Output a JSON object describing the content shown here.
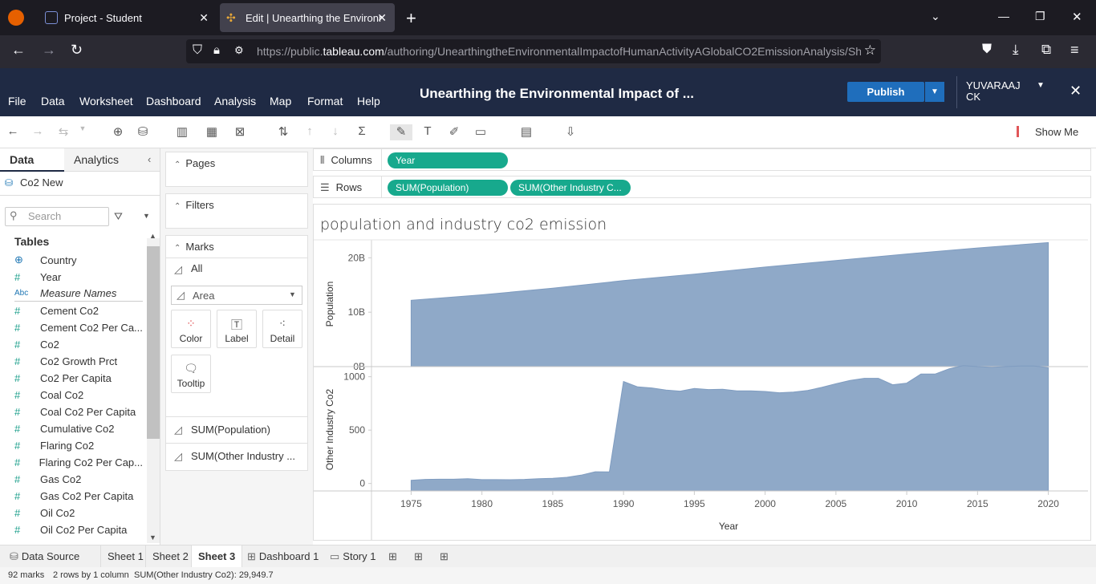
{
  "browser": {
    "tabs": [
      {
        "title": "Project - Student"
      },
      {
        "title": "Edit | Unearthing the Environme"
      }
    ],
    "url_prefix": "https://public.",
    "url_domain": "tableau.com",
    "url_rest": "/authoring/UnearthingtheEnvironmentalImpactofHumanActivityAGlobalCO2EmissionAnalysis/Sh"
  },
  "app": {
    "title": "Unearthing the Environmental Impact of ...",
    "menu": [
      "File",
      "Data",
      "Worksheet",
      "Dashboard",
      "Analysis",
      "Map",
      "Format",
      "Help"
    ],
    "publish_label": "Publish",
    "user_name": "YUVARAAJ CK",
    "show_me": "Show Me"
  },
  "data_pane": {
    "tab_data": "Data",
    "tab_analytics": "Analytics",
    "datasource": "Co2 New",
    "search_placeholder": "Search",
    "tables_header": "Tables",
    "fields": [
      {
        "name": "Country",
        "icon": "globe-icon"
      },
      {
        "name": "Year",
        "icon": "hash-icon"
      },
      {
        "name": "Measure Names",
        "icon": "abc-icon"
      },
      {
        "name": "Cement Co2",
        "icon": "hash-icon"
      },
      {
        "name": "Cement Co2 Per Ca...",
        "icon": "hash-icon"
      },
      {
        "name": "Co2",
        "icon": "hash-icon"
      },
      {
        "name": "Co2 Growth Prct",
        "icon": "hash-icon"
      },
      {
        "name": "Co2 Per Capita",
        "icon": "hash-icon"
      },
      {
        "name": "Coal Co2",
        "icon": "hash-icon"
      },
      {
        "name": "Coal Co2 Per Capita",
        "icon": "hash-icon"
      },
      {
        "name": "Cumulative Co2",
        "icon": "hash-icon"
      },
      {
        "name": "Flaring Co2",
        "icon": "hash-icon"
      },
      {
        "name": "Flaring Co2 Per Cap...",
        "icon": "hash-icon"
      },
      {
        "name": "Gas Co2",
        "icon": "hash-icon"
      },
      {
        "name": "Gas Co2 Per Capita",
        "icon": "hash-icon"
      },
      {
        "name": "Oil Co2",
        "icon": "hash-icon"
      },
      {
        "name": "Oil Co2 Per Capita",
        "icon": "hash-icon"
      }
    ]
  },
  "cards": {
    "pages": "Pages",
    "filters": "Filters",
    "marks": "Marks",
    "marks_all": "All",
    "mark_type": "Area",
    "buttons": {
      "color": "Color",
      "label": "Label",
      "detail": "Detail",
      "tooltip": "Tooltip"
    },
    "measures": [
      "SUM(Population)",
      "SUM(Other Industry ..."
    ]
  },
  "shelves": {
    "columns_label": "Columns",
    "rows_label": "Rows",
    "columns_pills": [
      "Year"
    ],
    "rows_pills": [
      "SUM(Population)",
      "SUM(Other Industry C..."
    ]
  },
  "sheet_tabs": {
    "data_source": "Data Source",
    "sheets": [
      "Sheet 1",
      "Sheet 2",
      "Sheet 3"
    ],
    "active": "Sheet 3",
    "dashboard": "Dashboard 1",
    "story": "Story 1"
  },
  "status": {
    "marks": "92 marks",
    "dims": "2 rows by 1 column",
    "sum": "SUM(Other Industry Co2): 29,949.7"
  },
  "chart_data": {
    "type": "area",
    "title": "population and industry co2 emission",
    "xlabel": "Year",
    "x_ticks": [
      "1975",
      "1980",
      "1985",
      "1990",
      "1995",
      "2000",
      "2005",
      "2010",
      "2015",
      "2020"
    ],
    "color": "#8fa9c8",
    "panes": [
      {
        "name": "Population",
        "ylabel": "Population",
        "y_ticks": [
          {
            "v": 0,
            "label": "0B"
          },
          {
            "v": 10,
            "label": "10B"
          },
          {
            "v": 20,
            "label": "20B"
          }
        ],
        "ylim": [
          0,
          23
        ],
        "x": [
          1975,
          1980,
          1985,
          1990,
          1995,
          2000,
          2005,
          2010,
          2015,
          2020
        ],
        "values": [
          12.2,
          13.2,
          14.4,
          15.8,
          17.0,
          18.3,
          19.5,
          20.7,
          21.8,
          22.8
        ]
      },
      {
        "name": "Other Industry Co2",
        "ylabel": "Other Industry Co2",
        "y_ticks": [
          {
            "v": 0,
            "label": "0"
          },
          {
            "v": 500,
            "label": "500"
          },
          {
            "v": 1000,
            "label": "1000"
          }
        ],
        "ylim": [
          -70,
          1080
        ],
        "x": [
          1975,
          1976,
          1977,
          1978,
          1979,
          1980,
          1981,
          1982,
          1983,
          1984,
          1985,
          1986,
          1987,
          1988,
          1989,
          1990,
          1991,
          1992,
          1993,
          1994,
          1995,
          1996,
          1997,
          1998,
          1999,
          2000,
          2001,
          2002,
          2003,
          2004,
          2005,
          2006,
          2007,
          2008,
          2009,
          2010,
          2011,
          2012,
          2013,
          2014,
          2015,
          2016,
          2017,
          2018,
          2019,
          2020
        ],
        "values": [
          30,
          38,
          40,
          40,
          44,
          36,
          36,
          35,
          38,
          45,
          48,
          58,
          78,
          110,
          108,
          955,
          905,
          895,
          875,
          865,
          890,
          880,
          882,
          868,
          867,
          862,
          850,
          857,
          872,
          900,
          935,
          965,
          985,
          985,
          925,
          940,
          1025,
          1025,
          1075,
          1105,
          1095,
          1088,
          1095,
          1100,
          1100,
          1085
        ]
      }
    ]
  }
}
